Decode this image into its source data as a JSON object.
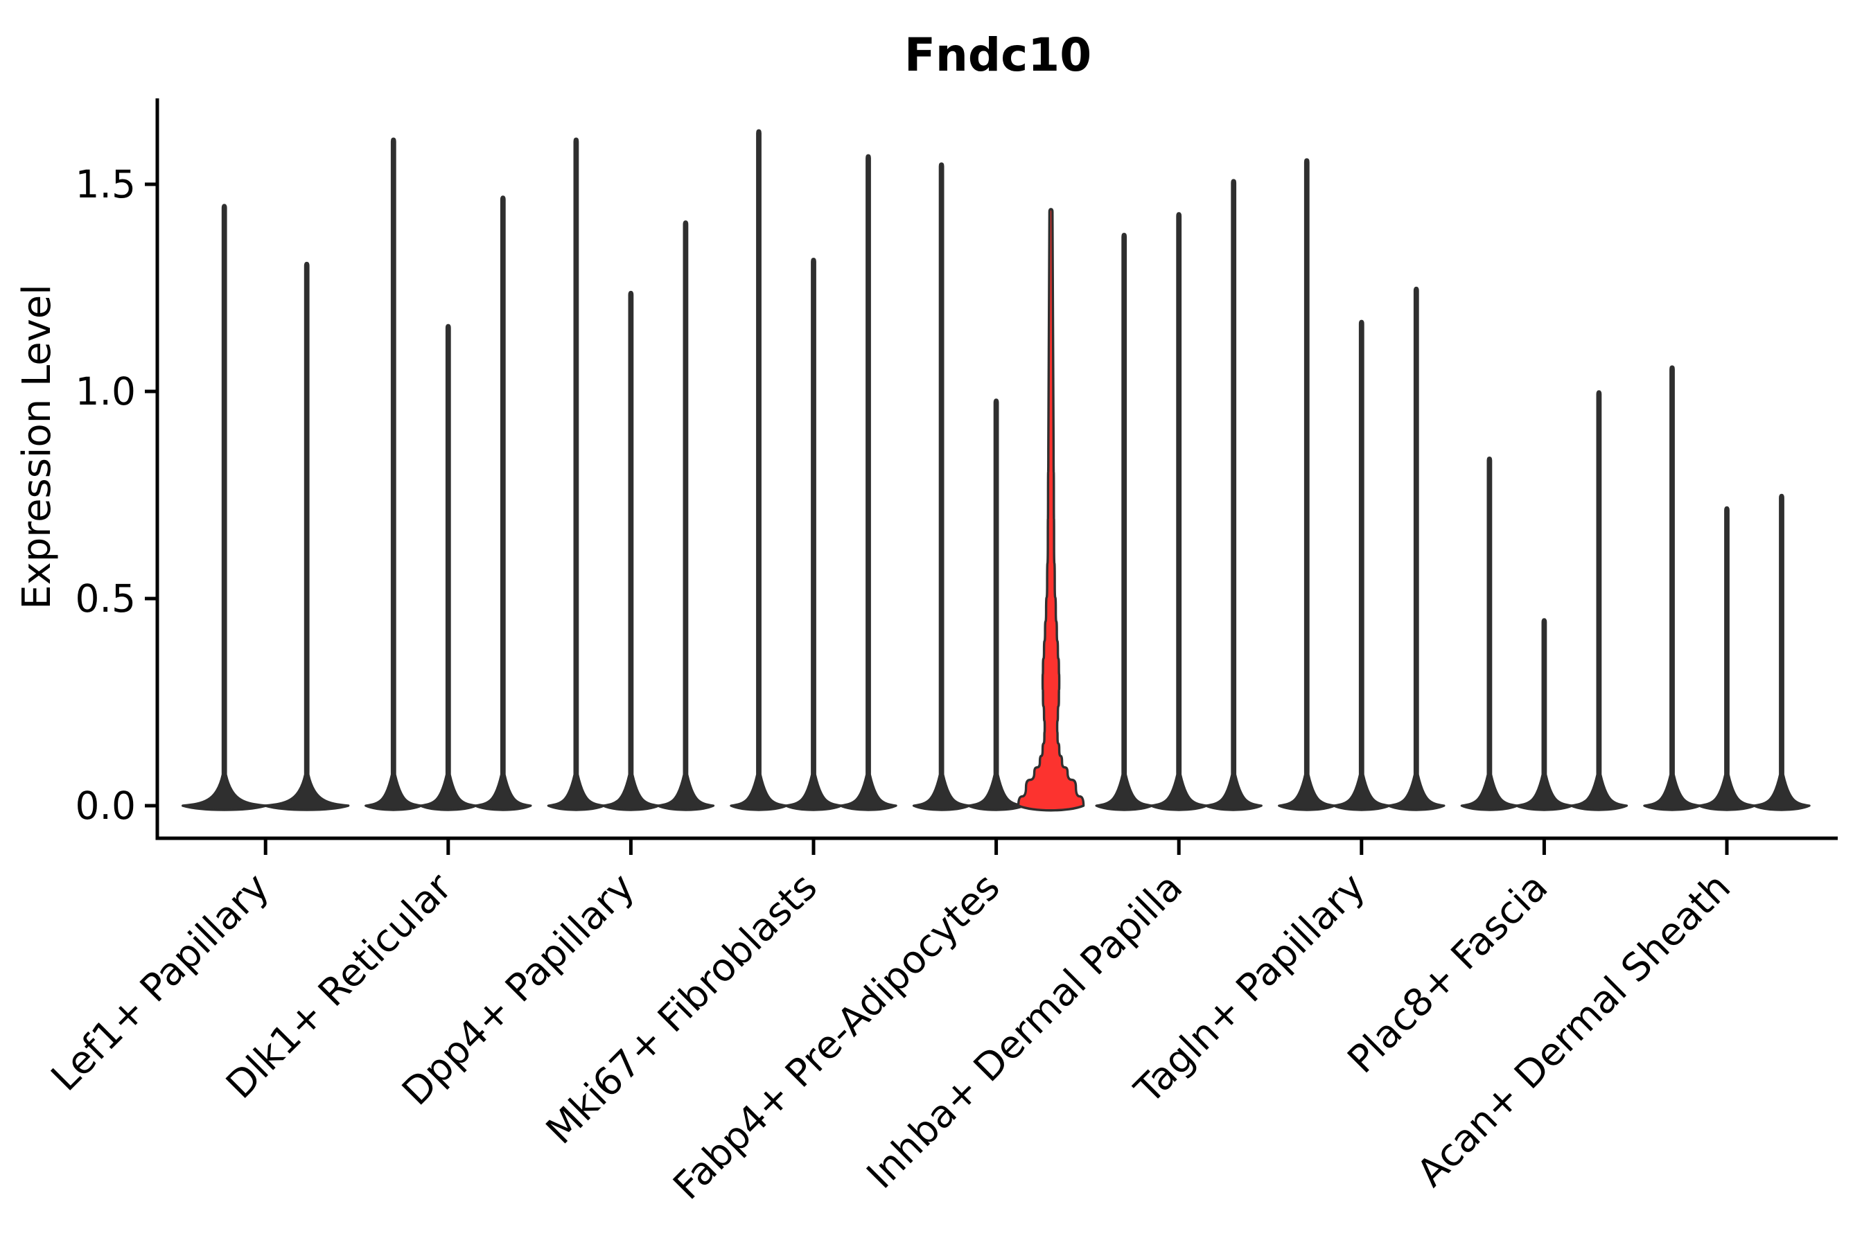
{
  "chart_data": {
    "type": "violin",
    "title": "Fndc10",
    "ylabel": "Expression Level",
    "xlabel": "",
    "yticks": [
      0.0,
      0.5,
      1.0,
      1.5
    ],
    "ylim": [
      -0.08,
      1.71
    ],
    "grid": false,
    "legend": "none",
    "background_color": "#ffffff",
    "violin_color": "#2f2f2f",
    "axis_color": "#000000",
    "highlight_fill_color": "#fc332f",
    "categories": [
      "Lef1+ Papillary",
      "Dlk1+ Reticular",
      "Dpp4+ Papillary",
      "Mki67+ Fibroblasts",
      "Fabp4+ Pre-Adipocytes",
      "Inhba+ Dermal Papilla",
      "Tagln+ Papillary",
      "Plac8+ Fascia",
      "Acan+ Dermal Sheath"
    ],
    "groups": [
      {
        "category": "Lef1+ Papillary",
        "violin_maxima": [
          1.45,
          1.31
        ],
        "highlighted_violin": -1
      },
      {
        "category": "Dlk1+ Reticular",
        "violin_maxima": [
          1.61,
          1.16,
          1.47
        ],
        "highlighted_violin": -1
      },
      {
        "category": "Dpp4+ Papillary",
        "violin_maxima": [
          1.61,
          1.24,
          1.41
        ],
        "highlighted_violin": -1
      },
      {
        "category": "Mki67+ Fibroblasts",
        "violin_maxima": [
          1.63,
          1.32,
          1.57
        ],
        "highlighted_violin": -1
      },
      {
        "category": "Fabp4+ Pre-Adipocytes",
        "violin_maxima": [
          1.55,
          0.98,
          1.44
        ],
        "highlighted_violin": 2
      },
      {
        "category": "Inhba+ Dermal Papilla",
        "violin_maxima": [
          1.38,
          1.43,
          1.51
        ],
        "highlighted_violin": -1
      },
      {
        "category": "Tagln+ Papillary",
        "violin_maxima": [
          1.56,
          1.17,
          1.25
        ],
        "highlighted_violin": -1
      },
      {
        "category": "Plac8+ Fascia",
        "violin_maxima": [
          0.84,
          0.45,
          1.0
        ],
        "highlighted_violin": -1
      },
      {
        "category": "Acan+ Dermal Sheath",
        "violin_maxima": [
          1.06,
          0.72,
          0.75
        ],
        "highlighted_violin": -1
      }
    ],
    "highlight_profile_value_halfwidth": [
      [
        0.0,
        47.0
      ],
      [
        0.045,
        36.0
      ],
      [
        0.08,
        24.0
      ],
      [
        0.105,
        16.0
      ],
      [
        0.135,
        12.0
      ],
      [
        0.165,
        9.5
      ],
      [
        0.19,
        9.0
      ],
      [
        0.22,
        10.0
      ],
      [
        0.26,
        11.5
      ],
      [
        0.3,
        12.0
      ],
      [
        0.335,
        11.5
      ],
      [
        0.375,
        10.0
      ],
      [
        0.42,
        8.5
      ],
      [
        0.47,
        7.0
      ],
      [
        0.535,
        5.5
      ],
      [
        0.635,
        4.5
      ],
      [
        0.75,
        4.2
      ],
      [
        0.86,
        3.8
      ]
    ]
  }
}
